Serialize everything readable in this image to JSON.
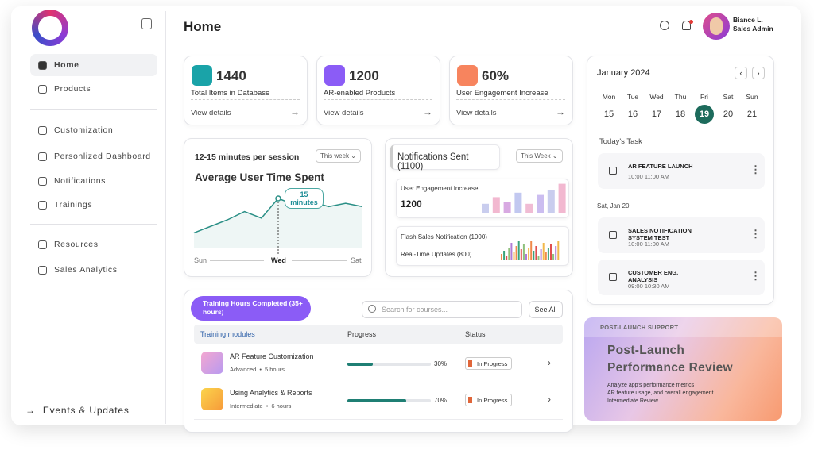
{
  "sidebar": {
    "nav": [
      "Home",
      "Products"
    ],
    "nav2": [
      "Customization",
      "Personlized Dashboard",
      "Notifications",
      "Trainings"
    ],
    "nav3": [
      "Resources",
      "Sales Analytics"
    ],
    "footer": "Events & Updates"
  },
  "header": {
    "title": "Home",
    "user_name": "Biance L.",
    "user_role": "Sales Admin"
  },
  "stats": [
    {
      "value": "1440",
      "label": "Total Items in Database",
      "link": "View details"
    },
    {
      "value": "1200",
      "label": "AR-enabled Products",
      "link": "View details"
    },
    {
      "value": "60%",
      "label": "User Engagement Increase",
      "link": "View details"
    }
  ],
  "time_chart": {
    "subtitle": "12-15 minutes per session",
    "filter": "This week",
    "title": "Average User Time Spent",
    "callout": "15 minutes",
    "x_labels": [
      "Sun",
      "Wed",
      "Sat"
    ],
    "values": [
      18,
      26,
      34,
      44,
      36,
      60,
      52,
      56,
      50,
      54,
      50
    ]
  },
  "notifications": {
    "title": "Notifications Sent (1100)",
    "filter": "This Week",
    "engagement_label": "User Engagement Increase",
    "engagement_value": "1200",
    "engagement_bars": [
      4,
      7,
      5,
      9,
      4,
      8,
      10,
      13
    ],
    "flash_label": "Flash Sales Notification (1000)",
    "realtime_label": "Real-Time Updates (800)",
    "flash_bars": [
      4,
      6,
      3,
      8,
      11,
      5,
      9,
      12,
      7,
      10,
      4,
      8,
      12,
      6,
      9,
      3,
      7,
      11,
      5,
      8,
      10,
      4,
      9,
      12
    ]
  },
  "training": {
    "badge": "Training Hours Completed (35+ hours)",
    "search_placeholder": "Search for courses...",
    "see_all": "See All",
    "columns": [
      "Training modules",
      "Progress",
      "Status"
    ],
    "rows": [
      {
        "title": "AR Feature Customization",
        "level": "Advanced",
        "hours": "5 hours",
        "progress": {
          "value": 30,
          "label": "30%"
        },
        "status": "In Progress"
      },
      {
        "title": "Using Analytics & Reports",
        "level": "Intermediate",
        "hours": "6 hours",
        "progress": {
          "value": 70,
          "label": "70%"
        },
        "status": "In Progress"
      }
    ]
  },
  "calendar": {
    "month": "January 2024",
    "days": [
      {
        "name": "Mon",
        "date": "15"
      },
      {
        "name": "Tue",
        "date": "16"
      },
      {
        "name": "Wed",
        "date": "17"
      },
      {
        "name": "Thu",
        "date": "18"
      },
      {
        "name": "Fri",
        "date": "19",
        "selected": true
      },
      {
        "name": "Sat",
        "date": "20"
      },
      {
        "name": "Sun",
        "date": "21"
      }
    ],
    "tasks_title": "Today's Task",
    "tasks": [
      {
        "title": "AR FEATURE LAUNCH",
        "time": "10:00 11:00 AM"
      }
    ],
    "next_date": "Sat, Jan 20",
    "next_tasks": [
      {
        "title": "SALES NOTIFICATION SYSTEM TEST",
        "time": "10:00 11:00 AM"
      },
      {
        "title": "CUSTOMER ENG. ANALYSIS",
        "time": "09:00 10:30 AM"
      }
    ]
  },
  "promo": {
    "tag": "POST-LAUNCH SUPPORT",
    "title": "Post-Launch Performance Review",
    "lines": [
      "Analyze app's performance metrics",
      "AR feature usage, and overall engagement",
      "Intermediate Review"
    ]
  }
}
